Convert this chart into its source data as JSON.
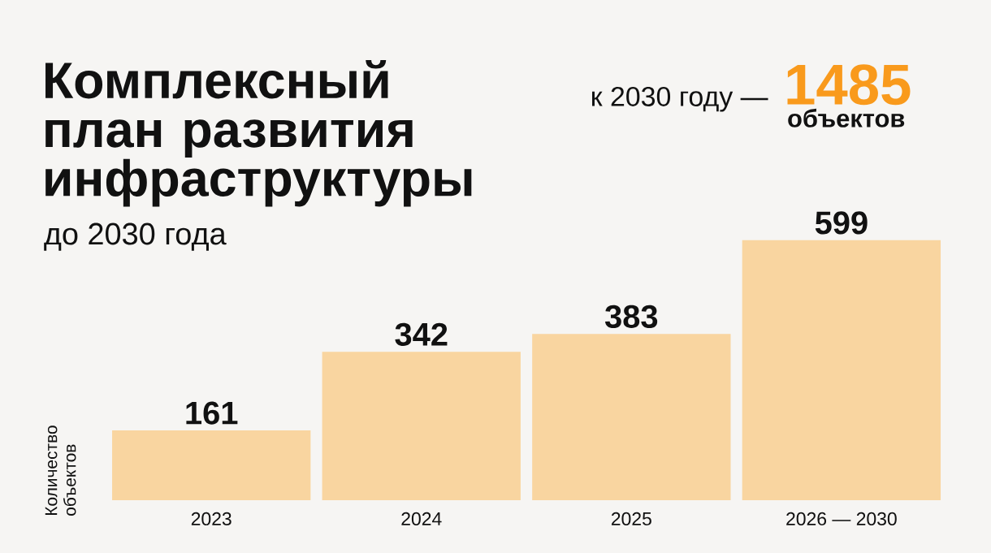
{
  "chart_data": {
    "type": "bar",
    "title": "Комплексный план развития инфраструктуры",
    "subtitle": "до 2030 года",
    "ylabel": "Количество объектов",
    "categories": [
      "2023",
      "2024",
      "2025",
      "2026 — 2030"
    ],
    "values": [
      161,
      342,
      383,
      599
    ],
    "color": "#f9d5a0",
    "tick_labels": "x",
    "data_labels": true,
    "annotations": [
      "к 2030 году —",
      "1485",
      "объектов"
    ]
  }
}
